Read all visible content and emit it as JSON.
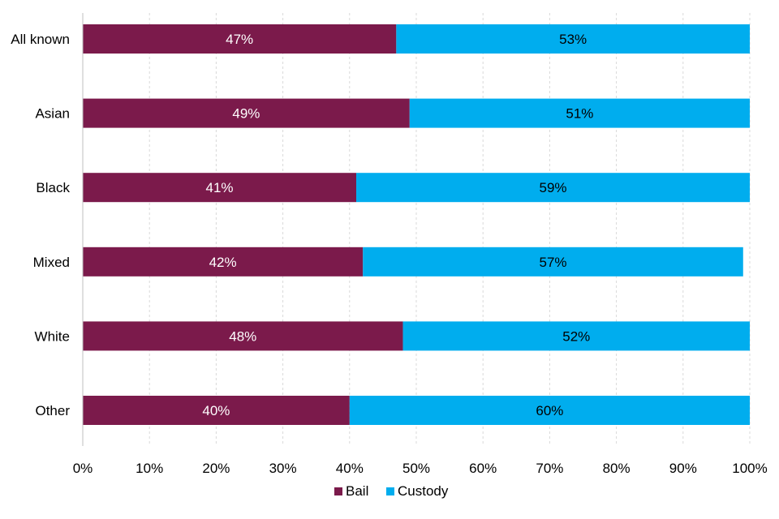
{
  "chart_data": {
    "type": "bar",
    "orientation": "horizontal",
    "stacked": true,
    "title": "",
    "xlabel": "",
    "ylabel": "",
    "xlim": [
      0,
      100
    ],
    "grid": true,
    "legend_position": "bottom",
    "categories": [
      "All known",
      "Asian",
      "Black",
      "Mixed",
      "White",
      "Other"
    ],
    "tick_values": [
      0,
      10,
      20,
      30,
      40,
      50,
      60,
      70,
      80,
      90,
      100
    ],
    "tick_labels": [
      "0%",
      "10%",
      "20%",
      "30%",
      "40%",
      "50%",
      "60%",
      "70%",
      "80%",
      "90%",
      "100%"
    ],
    "series": [
      {
        "name": "Bail",
        "color": "#7b1a4b",
        "label_color": "#ffffff",
        "values": [
          47,
          49,
          41,
          42,
          48,
          40
        ],
        "labels": [
          "47%",
          "49%",
          "41%",
          "42%",
          "48%",
          "40%"
        ]
      },
      {
        "name": "Custody",
        "color": "#00adee",
        "label_color": "#000000",
        "values": [
          53,
          51,
          59,
          57,
          52,
          60
        ],
        "labels": [
          "53%",
          "51%",
          "59%",
          "57%",
          "52%",
          "60%"
        ]
      }
    ]
  }
}
